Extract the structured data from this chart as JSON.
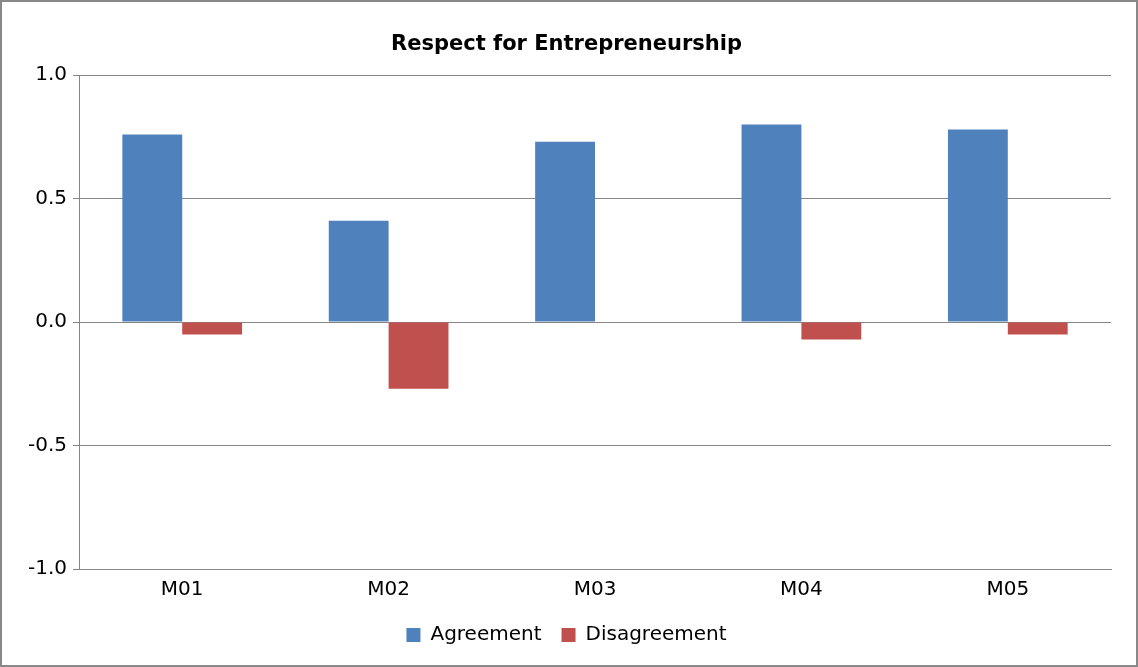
{
  "chart_data": {
    "type": "bar",
    "title": "Respect for Entrepreneurship",
    "categories": [
      "M01",
      "M02",
      "M03",
      "M04",
      "M05"
    ],
    "series": [
      {
        "name": "Agreement",
        "color": "#4f81bd",
        "values": [
          0.76,
          0.41,
          0.73,
          0.8,
          0.78
        ]
      },
      {
        "name": "Disagreement",
        "color": "#c0504d",
        "values": [
          -0.05,
          -0.27,
          0,
          -0.07,
          -0.05
        ]
      }
    ],
    "ylim": [
      -1,
      1
    ],
    "yticks": [
      {
        "value": -1,
        "label": "-1.0"
      },
      {
        "value": -0.5,
        "label": "-0.5"
      },
      {
        "value": 0,
        "label": "0.0"
      },
      {
        "value": 0.5,
        "label": "0.5"
      },
      {
        "value": 1,
        "label": "1.0"
      }
    ],
    "grid": "y",
    "legend": "bottom"
  }
}
